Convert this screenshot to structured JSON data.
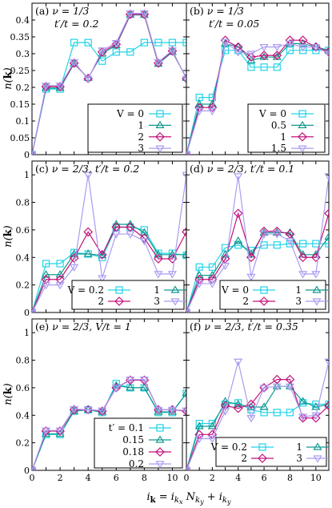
{
  "colors": {
    "c0": "#22d3e8",
    "c1": "#12998f",
    "c2": "#c4127a",
    "c3": "#aa9cf2"
  },
  "xlabel": "i_k = i_kx N_ky + i_ky",
  "ylabel": "n(k)",
  "chart_data": [
    {
      "type": "line",
      "panel": "(a)",
      "annotation": [
        "ν = 1/3",
        "t′/t = 0.2"
      ],
      "xlim": [
        0,
        11
      ],
      "ylim": [
        0,
        0.45
      ],
      "yticks": [
        "0",
        "0.05",
        "0.1",
        "0.15",
        "0.2",
        "0.25",
        "0.3",
        "0.35",
        "0.4"
      ],
      "legend_position": "bottom-right",
      "series": [
        {
          "name": "V = 0",
          "values": [
            0,
            0.195,
            0.195,
            0.333,
            0.333,
            0.278,
            0.305,
            0.305,
            0.333,
            0.333,
            0.333,
            0.333
          ]
        },
        {
          "name": "1",
          "values": [
            0,
            0.198,
            0.198,
            0.27,
            0.228,
            0.3,
            0.325,
            0.415,
            0.415,
            0.27,
            0.305,
            0.228
          ]
        },
        {
          "name": "2",
          "values": [
            0,
            0.202,
            0.202,
            0.272,
            0.226,
            0.305,
            0.328,
            0.417,
            0.417,
            0.272,
            0.308,
            0.226
          ]
        },
        {
          "name": "3",
          "values": [
            0,
            0.205,
            0.205,
            0.275,
            0.225,
            0.31,
            0.332,
            0.42,
            0.42,
            0.275,
            0.31,
            0.225
          ]
        }
      ]
    },
    {
      "type": "line",
      "panel": "(b)",
      "annotation": [
        "ν = 1/3",
        "t′/t = 0.05"
      ],
      "xlim": [
        0,
        11
      ],
      "ylim": [
        0,
        0.45
      ],
      "yticks": [],
      "legend_position": "bottom-right",
      "series": [
        {
          "name": "V = 0",
          "values": [
            0,
            0.17,
            0.17,
            0.31,
            0.31,
            0.26,
            0.26,
            0.26,
            0.31,
            0.31,
            0.31,
            0.31
          ]
        },
        {
          "name": "0.5",
          "values": [
            0,
            0.15,
            0.15,
            0.33,
            0.32,
            0.28,
            0.29,
            0.29,
            0.33,
            0.33,
            0.32,
            0.31
          ]
        },
        {
          "name": "1",
          "values": [
            0,
            0.14,
            0.14,
            0.34,
            0.32,
            0.29,
            0.295,
            0.295,
            0.34,
            0.34,
            0.32,
            0.305
          ]
        },
        {
          "name": "1.5",
          "values": [
            0,
            0.13,
            0.13,
            0.335,
            0.305,
            0.3,
            0.32,
            0.32,
            0.33,
            0.32,
            0.32,
            0.3
          ]
        }
      ]
    },
    {
      "type": "line",
      "panel": "(c)",
      "annotation": [
        "ν = 2/3,  t′/t = 0.2"
      ],
      "xlim": [
        0,
        11
      ],
      "ylim": [
        0,
        1.1
      ],
      "yticks": [
        "0",
        "0.2",
        "0.4",
        "0.6",
        "0.8",
        "1"
      ],
      "legend_position": "bottom",
      "series": [
        {
          "name": "V = 0.2",
          "values": [
            0,
            0.355,
            0.355,
            0.435,
            0.425,
            0.4,
            0.62,
            0.62,
            0.6,
            0.43,
            0.43,
            0.415
          ]
        },
        {
          "name": "1",
          "values": [
            0,
            0.275,
            0.275,
            0.425,
            0.425,
            0.415,
            0.64,
            0.64,
            0.58,
            0.42,
            0.42,
            0.42
          ]
        },
        {
          "name": "2",
          "values": [
            0,
            0.24,
            0.24,
            0.395,
            0.585,
            0.42,
            0.62,
            0.62,
            0.54,
            0.39,
            0.39,
            0.585
          ]
        },
        {
          "name": "3",
          "values": [
            0,
            0.2,
            0.2,
            0.33,
            1.0,
            0.25,
            0.57,
            0.57,
            0.52,
            0.28,
            0.28,
            1.0
          ]
        }
      ]
    },
    {
      "type": "line",
      "panel": "(d)",
      "annotation": [
        "ν = 2/3,  t′/t = 0.1"
      ],
      "xlim": [
        0,
        11
      ],
      "ylim": [
        0,
        1.1
      ],
      "yticks": [],
      "legend_position": "bottom",
      "series": [
        {
          "name": "V = 0",
          "values": [
            0,
            0.33,
            0.33,
            0.47,
            0.49,
            0.45,
            0.49,
            0.49,
            0.5,
            0.5,
            0.5,
            0.5
          ]
        },
        {
          "name": "1",
          "values": [
            0,
            0.27,
            0.27,
            0.42,
            0.52,
            0.42,
            0.58,
            0.58,
            0.58,
            0.42,
            0.42,
            0.55
          ]
        },
        {
          "name": "2",
          "values": [
            0,
            0.24,
            0.24,
            0.39,
            0.72,
            0.4,
            0.59,
            0.59,
            0.57,
            0.4,
            0.4,
            0.72
          ]
        },
        {
          "name": "3",
          "values": [
            0,
            0.21,
            0.21,
            0.34,
            0.99,
            0.26,
            0.57,
            0.57,
            0.52,
            0.28,
            0.28,
            0.99
          ]
        }
      ]
    },
    {
      "type": "line",
      "panel": "(e)",
      "annotation": [
        "ν = 2/3,  V/t = 1"
      ],
      "xlim": [
        0,
        11
      ],
      "ylim": [
        0,
        1.1
      ],
      "yticks": [
        "0",
        "0.2",
        "0.4",
        "0.6",
        "0.8",
        "1"
      ],
      "legend_position": "bottom-right",
      "series": [
        {
          "name": "t′ = 0.1",
          "values": [
            0,
            0.26,
            0.26,
            0.43,
            0.44,
            0.42,
            0.63,
            0.6,
            0.6,
            0.42,
            0.42,
            0.56
          ]
        },
        {
          "name": "0.15",
          "values": [
            0,
            0.265,
            0.265,
            0.43,
            0.44,
            0.425,
            0.615,
            0.6,
            0.6,
            0.425,
            0.425,
            0.56
          ]
        },
        {
          "name": "0.18",
          "values": [
            0,
            0.285,
            0.285,
            0.44,
            0.44,
            0.43,
            0.6,
            0.655,
            0.655,
            0.44,
            0.44,
            0.43
          ]
        },
        {
          "name": "0.2",
          "values": [
            0,
            0.29,
            0.29,
            0.445,
            0.44,
            0.435,
            0.6,
            0.66,
            0.66,
            0.44,
            0.44,
            0.435
          ]
        }
      ]
    },
    {
      "type": "line",
      "panel": "(f)",
      "annotation": [
        "ν = 2/3,  t′/t = 0.35"
      ],
      "xlim": [
        0,
        11
      ],
      "ylim": [
        0,
        1.1
      ],
      "yticks": [],
      "legend_position": "bottom",
      "series": [
        {
          "name": "V = 0.2",
          "values": [
            0,
            0.34,
            0.34,
            0.48,
            0.49,
            0.44,
            0.42,
            0.42,
            0.42,
            0.49,
            0.48,
            0.48
          ]
        },
        {
          "name": "1",
          "values": [
            0,
            0.32,
            0.32,
            0.5,
            0.48,
            0.46,
            0.46,
            0.61,
            0.61,
            0.5,
            0.46,
            0.48
          ]
        },
        {
          "name": "2",
          "values": [
            0,
            0.26,
            0.26,
            0.47,
            0.45,
            0.48,
            0.6,
            0.66,
            0.66,
            0.38,
            0.38,
            0.47
          ]
        },
        {
          "name": "3",
          "values": [
            0,
            0.23,
            0.23,
            0.43,
            0.79,
            0.38,
            0.6,
            0.61,
            0.61,
            0.39,
            0.4,
            0.79
          ]
        }
      ]
    }
  ]
}
